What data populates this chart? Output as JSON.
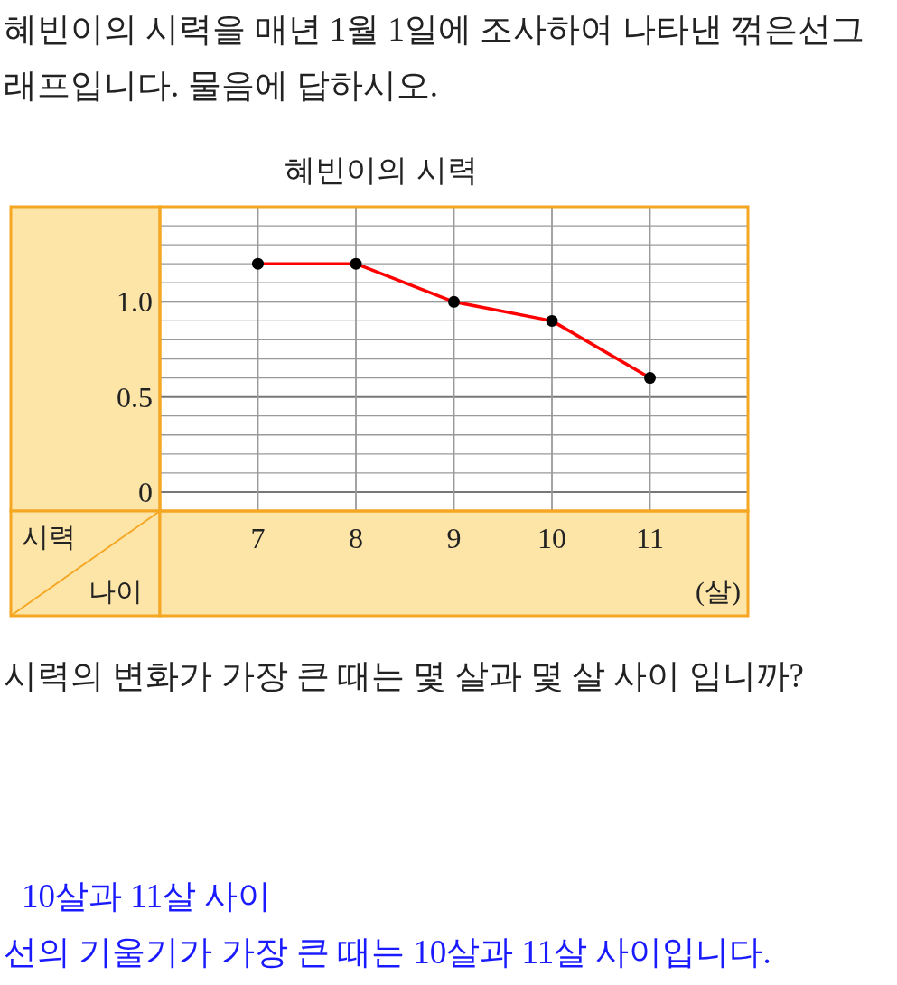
{
  "chart_data": {
    "type": "line",
    "title": "혜빈이의 시력",
    "xlabel": "나이",
    "ylabel": "시력",
    "x": [
      7,
      8,
      9,
      10,
      11
    ],
    "series": [
      {
        "color": "#ff0000",
        "values": [
          1.2,
          1.2,
          1.0,
          0.9,
          0.6
        ]
      }
    ],
    "xlim": [
      6,
      12
    ],
    "xticks": [
      7,
      8,
      9,
      10,
      11
    ],
    "ylim": [
      -0.1,
      1.5
    ],
    "yticks": [
      0,
      {
        "value": 0.1,
        "label": null
      },
      {
        "value": 0.2,
        "label": null
      },
      {
        "value": 0.3,
        "label": null
      },
      {
        "value": 0.4,
        "label": null
      },
      {
        "value": 0.5,
        "label": "0.5"
      },
      {
        "value": 0.6,
        "label": null
      },
      {
        "value": 0.7,
        "label": null
      },
      {
        "value": 0.8,
        "label": null
      },
      {
        "value": 0.9,
        "label": null
      },
      {
        "value": 1,
        "label": "1.0"
      },
      {
        "value": 1.1,
        "label": null
      },
      {
        "value": 1.2,
        "label": null
      },
      {
        "value": 1.3,
        "label": null
      },
      {
        "value": 1.4,
        "label": null
      },
      {
        "value": 1.5,
        "label": null
      }
    ],
    "grid": true,
    "marker": "circle",
    "line_style": "solid",
    "annotations": [
      "혜빈이의 시력을 매년 1월 1일에 조사하여 나타낸 꺾은선그래프입니다. 물음에 답하시오.",
      "(살)",
      "시력의 변화가 가장 큰 때는 몇 살과 몇 살 사이 입니까?",
      "10살과 11살 사이",
      "선의 기울기가 가장 큰 때는 10살과 11살 사이입니다."
    ]
  }
}
